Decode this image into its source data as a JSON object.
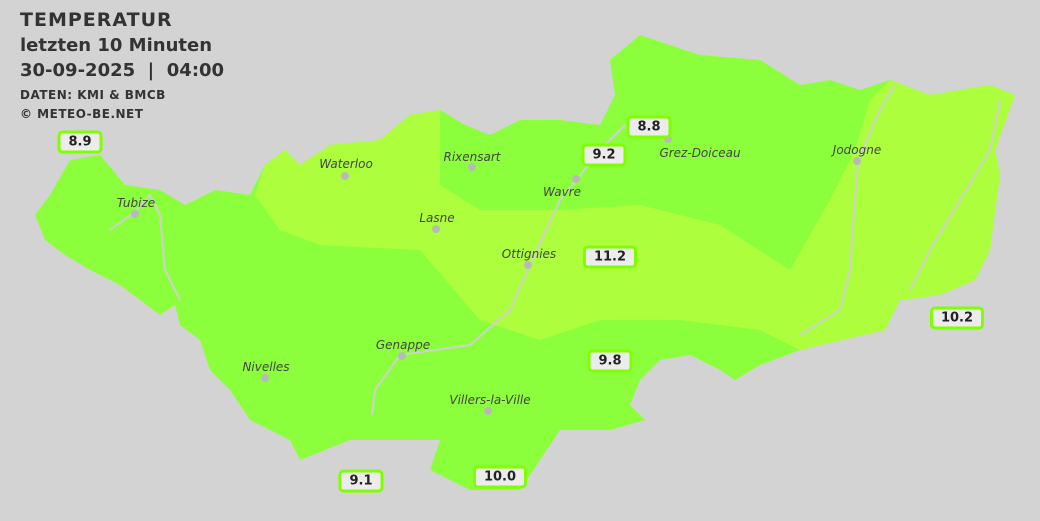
{
  "header": {
    "title": "TEMPERATUR",
    "subtitle": "letzten 10 Minuten",
    "datetime": "30-09-2025  |  04:00",
    "source": "DATEN: KMI & BMCB",
    "copyright": "© METEO-BE.NET"
  },
  "colors": {
    "background": "#d3d3d3",
    "zone_low": "#8cff3c",
    "zone_high": "#adff3d",
    "label_border": "#7fff00"
  },
  "towns": [
    {
      "name": "Waterloo"
    },
    {
      "name": "Rixensart"
    },
    {
      "name": "Wavre"
    },
    {
      "name": "Grez-Doiceau"
    },
    {
      "name": "Jodogne"
    },
    {
      "name": "Tubize"
    },
    {
      "name": "Lasne"
    },
    {
      "name": "Ottignies"
    },
    {
      "name": "Genappe"
    },
    {
      "name": "Nivelles"
    },
    {
      "name": "Villers-la-Ville"
    }
  ],
  "readings": [
    {
      "value": "8.9"
    },
    {
      "value": "8.8"
    },
    {
      "value": "9.2"
    },
    {
      "value": "11.2"
    },
    {
      "value": "10.2"
    },
    {
      "value": "9.8"
    },
    {
      "value": "9.1"
    },
    {
      "value": "10.0"
    }
  ]
}
